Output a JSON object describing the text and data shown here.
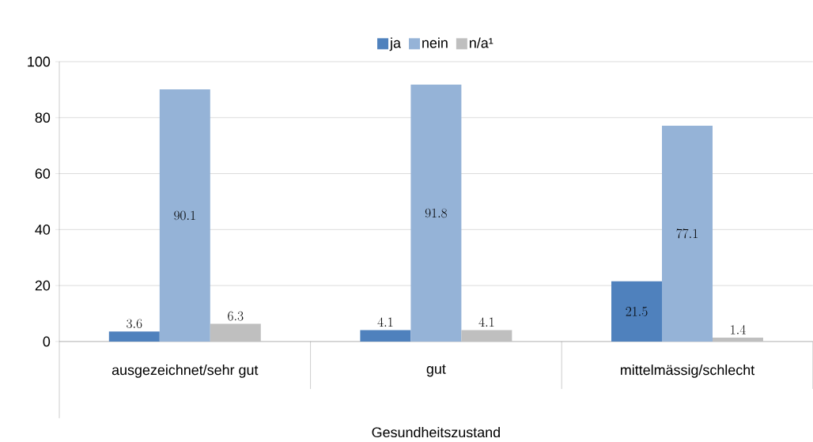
{
  "chart_data": {
    "type": "bar",
    "categories": [
      "ausgezeichnet/sehr gut",
      "gut",
      "mittelmässig/schlecht"
    ],
    "xlabel": "Gesundheitszustand",
    "series": [
      {
        "name": "ja",
        "color": "#4f81bd",
        "values": [
          3.6,
          4.1,
          21.5
        ]
      },
      {
        "name": "nein",
        "color": "#95b3d7",
        "values": [
          90.1,
          91.8,
          77.1
        ]
      },
      {
        "name": "n/a¹",
        "color": "#bfbfbf",
        "values": [
          6.3,
          4.1,
          1.4
        ]
      }
    ],
    "ylim": [
      0,
      100
    ],
    "yticks": [
      0,
      20,
      40,
      60,
      80,
      100
    ],
    "grid": "y",
    "legend": "top",
    "data_labels": true
  }
}
